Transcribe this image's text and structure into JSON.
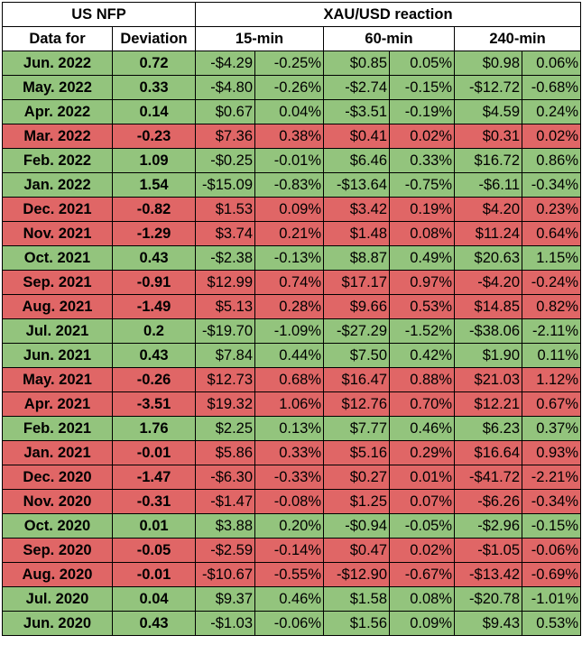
{
  "headers": {
    "group_nfp": "US NFP",
    "group_reaction": "XAU/USD reaction",
    "data_for": "Data for",
    "deviation": "Deviation",
    "m15": "15-min",
    "m60": "60-min",
    "m240": "240-min"
  },
  "colors": {
    "positive": "#93c47d",
    "negative": "#e06666"
  },
  "rows": [
    {
      "date": "Jun. 2022",
      "dev": "0.72",
      "a": "-$4.29",
      "b": "-0.25%",
      "c": "$0.85",
      "d": "0.05%",
      "e": "$0.98",
      "f": "0.06%",
      "sign": "pos"
    },
    {
      "date": "May. 2022",
      "dev": "0.33",
      "a": "-$4.80",
      "b": "-0.26%",
      "c": "-$2.74",
      "d": "-0.15%",
      "e": "-$12.72",
      "f": "-0.68%",
      "sign": "pos"
    },
    {
      "date": "Apr. 2022",
      "dev": "0.14",
      "a": "$0.67",
      "b": "0.04%",
      "c": "-$3.51",
      "d": "-0.19%",
      "e": "$4.59",
      "f": "0.24%",
      "sign": "pos"
    },
    {
      "date": "Mar. 2022",
      "dev": "-0.23",
      "a": "$7.36",
      "b": "0.38%",
      "c": "$0.41",
      "d": "0.02%",
      "e": "$0.31",
      "f": "0.02%",
      "sign": "neg"
    },
    {
      "date": "Feb. 2022",
      "dev": "1.09",
      "a": "-$0.25",
      "b": "-0.01%",
      "c": "$6.46",
      "d": "0.33%",
      "e": "$16.72",
      "f": "0.86%",
      "sign": "pos"
    },
    {
      "date": "Jan. 2022",
      "dev": "1.54",
      "a": "-$15.09",
      "b": "-0.83%",
      "c": "-$13.64",
      "d": "-0.75%",
      "e": "-$6.11",
      "f": "-0.34%",
      "sign": "pos"
    },
    {
      "date": "Dec. 2021",
      "dev": "-0.82",
      "a": "$1.53",
      "b": "0.09%",
      "c": "$3.42",
      "d": "0.19%",
      "e": "$4.20",
      "f": "0.23%",
      "sign": "neg"
    },
    {
      "date": "Nov. 2021",
      "dev": "-1.29",
      "a": "$3.74",
      "b": "0.21%",
      "c": "$1.48",
      "d": "0.08%",
      "e": "$11.24",
      "f": "0.64%",
      "sign": "neg"
    },
    {
      "date": "Oct. 2021",
      "dev": "0.43",
      "a": "-$2.38",
      "b": "-0.13%",
      "c": "$8.87",
      "d": "0.49%",
      "e": "$20.63",
      "f": "1.15%",
      "sign": "pos"
    },
    {
      "date": "Sep. 2021",
      "dev": "-0.91",
      "a": "$12.99",
      "b": "0.74%",
      "c": "$17.17",
      "d": "0.97%",
      "e": "-$4.20",
      "f": "-0.24%",
      "sign": "neg"
    },
    {
      "date": "Aug. 2021",
      "dev": "-1.49",
      "a": "$5.13",
      "b": "0.28%",
      "c": "$9.66",
      "d": "0.53%",
      "e": "$14.85",
      "f": "0.82%",
      "sign": "neg"
    },
    {
      "date": "Jul. 2021",
      "dev": "0.2",
      "a": "-$19.70",
      "b": "-1.09%",
      "c": "-$27.29",
      "d": "-1.52%",
      "e": "-$38.06",
      "f": "-2.11%",
      "sign": "pos"
    },
    {
      "date": "Jun. 2021",
      "dev": "0.43",
      "a": "$7.84",
      "b": "0.44%",
      "c": "$7.50",
      "d": "0.42%",
      "e": "$1.90",
      "f": "0.11%",
      "sign": "pos"
    },
    {
      "date": "May. 2021",
      "dev": "-0.26",
      "a": "$12.73",
      "b": "0.68%",
      "c": "$16.47",
      "d": "0.88%",
      "e": "$21.03",
      "f": "1.12%",
      "sign": "neg"
    },
    {
      "date": "Apr. 2021",
      "dev": "-3.51",
      "a": "$19.32",
      "b": "1.06%",
      "c": "$12.76",
      "d": "0.70%",
      "e": "$12.21",
      "f": "0.67%",
      "sign": "neg"
    },
    {
      "date": "Feb. 2021",
      "dev": "1.76",
      "a": "$2.25",
      "b": "0.13%",
      "c": "$7.77",
      "d": "0.46%",
      "e": "$6.23",
      "f": "0.37%",
      "sign": "pos"
    },
    {
      "date": "Jan. 2021",
      "dev": "-0.01",
      "a": "$5.86",
      "b": "0.33%",
      "c": "$5.16",
      "d": "0.29%",
      "e": "$16.64",
      "f": "0.93%",
      "sign": "neg"
    },
    {
      "date": "Dec. 2020",
      "dev": "-1.47",
      "a": "-$6.30",
      "b": "-0.33%",
      "c": "$0.27",
      "d": "0.01%",
      "e": "-$41.72",
      "f": "-2.21%",
      "sign": "neg"
    },
    {
      "date": "Nov. 2020",
      "dev": "-0.31",
      "a": "-$1.47",
      "b": "-0.08%",
      "c": "$1.25",
      "d": "0.07%",
      "e": "-$6.26",
      "f": "-0.34%",
      "sign": "neg"
    },
    {
      "date": "Oct. 2020",
      "dev": "0.01",
      "a": "$3.88",
      "b": "0.20%",
      "c": "-$0.94",
      "d": "-0.05%",
      "e": "-$2.96",
      "f": "-0.15%",
      "sign": "pos"
    },
    {
      "date": "Sep. 2020",
      "dev": "-0.05",
      "a": "-$2.59",
      "b": "-0.14%",
      "c": "$0.47",
      "d": "0.02%",
      "e": "-$1.05",
      "f": "-0.06%",
      "sign": "neg"
    },
    {
      "date": "Aug. 2020",
      "dev": "-0.01",
      "a": "-$10.67",
      "b": "-0.55%",
      "c": "-$12.90",
      "d": "-0.67%",
      "e": "-$13.42",
      "f": "-0.69%",
      "sign": "neg"
    },
    {
      "date": "Jul. 2020",
      "dev": "0.04",
      "a": "$9.37",
      "b": "0.46%",
      "c": "$1.58",
      "d": "0.08%",
      "e": "-$20.78",
      "f": "-1.01%",
      "sign": "pos"
    },
    {
      "date": "Jun. 2020",
      "dev": "0.43",
      "a": "-$1.03",
      "b": "-0.06%",
      "c": "$1.56",
      "d": "0.09%",
      "e": "$9.43",
      "f": "0.53%",
      "sign": "pos"
    }
  ]
}
